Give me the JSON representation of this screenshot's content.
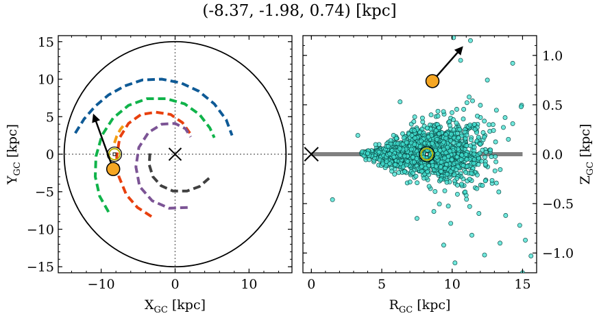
{
  "title": "(-8.37, -1.98, 0.74) [kpc]",
  "colors": {
    "spiral_1": "#0e5a96",
    "spiral_2": "#10b34a",
    "spiral_3": "#f39c12",
    "spiral_4": "#e8400e",
    "spiral_5": "#7c5495",
    "spiral_6": "#404040",
    "star_fill": "#f5a623",
    "sun_ring": "#b8b000",
    "scatter_fill": "#40e0d0",
    "plane_line": "#808080"
  },
  "chart_data": [
    {
      "type": "line",
      "name": "left-panel",
      "xlabel": "X_GC [kpc]",
      "ylabel": "Y_GC [kpc]",
      "xlim": [
        -15.8,
        15.8
      ],
      "ylim": [
        -15.8,
        15.8
      ],
      "xticks": [
        -10,
        0,
        10
      ],
      "xtick_labels": [
        "−10",
        "0",
        "10"
      ],
      "yticks": [
        -15,
        -10,
        -5,
        0,
        5,
        10,
        15
      ],
      "ytick_labels": [
        "−15",
        "−10",
        "−5",
        "0",
        "5",
        "10",
        "15"
      ],
      "grid": false,
      "boundary_circle_radius": 15,
      "galactic_center": [
        0,
        0
      ],
      "sun": [
        -8.2,
        0
      ],
      "star": [
        -8.37,
        -1.98
      ],
      "velocity_arrow": {
        "from": [
          -8.37,
          -1.98
        ],
        "to": [
          -11,
          5.2
        ]
      },
      "series": [
        {
          "values": [
            [
              -13.5,
              2.8
            ],
            [
              -12.3,
              4.7
            ],
            [
              -10.8,
              6.4
            ],
            [
              -9.0,
              7.9
            ],
            [
              -6.8,
              9.1
            ],
            [
              -4.4,
              9.9
            ],
            [
              -1.8,
              10.0
            ],
            [
              0.8,
              9.5
            ],
            [
              3.2,
              8.4
            ],
            [
              5.3,
              6.7
            ],
            [
              6.9,
              4.6
            ],
            [
              7.7,
              2.5
            ]
          ]
        },
        {
          "values": [
            [
              -9.0,
              -7.7
            ],
            [
              -10.2,
              -5.6
            ],
            [
              -10.8,
              -3.0
            ],
            [
              -10.7,
              -0.3
            ],
            [
              -9.9,
              2.5
            ],
            [
              -8.4,
              4.8
            ],
            [
              -6.3,
              6.5
            ],
            [
              -3.8,
              7.4
            ],
            [
              -1.2,
              7.4
            ],
            [
              1.3,
              6.7
            ],
            [
              3.3,
              5.3
            ],
            [
              4.7,
              3.5
            ],
            [
              5.3,
              2.2
            ]
          ]
        },
        {
          "values": [
            [
              -8.2,
              1.5
            ],
            [
              -7.9,
              2.4
            ],
            [
              -7.4,
              3.3
            ],
            [
              -7.0,
              3.8
            ]
          ]
        },
        {
          "values": [
            [
              -3.2,
              -8.3
            ],
            [
              -5.1,
              -7.1
            ],
            [
              -6.6,
              -5.4
            ],
            [
              -7.6,
              -3.0
            ],
            [
              -7.9,
              -0.4
            ],
            [
              -7.5,
              2.2
            ],
            [
              -6.3,
              4.1
            ],
            [
              -4.6,
              5.3
            ],
            [
              -2.6,
              5.6
            ],
            [
              -0.6,
              5.3
            ],
            [
              1.0,
              4.2
            ],
            [
              2.0,
              2.8
            ]
          ]
        },
        {
          "values": [
            [
              1.7,
              -7.1
            ],
            [
              -0.8,
              -7.2
            ],
            [
              -3.1,
              -6.2
            ],
            [
              -4.8,
              -4.3
            ],
            [
              -5.3,
              -1.7
            ],
            [
              -4.9,
              0.9
            ],
            [
              -3.6,
              2.9
            ],
            [
              -1.8,
              4.0
            ],
            [
              0.0,
              4.1
            ],
            [
              1.4,
              3.4
            ],
            [
              2.1,
              2.3
            ]
          ]
        },
        {
          "values": [
            [
              4.6,
              -3.2
            ],
            [
              3.3,
              -4.3
            ],
            [
              1.6,
              -4.9
            ],
            [
              -0.3,
              -4.9
            ],
            [
              -1.9,
              -4.2
            ],
            [
              -3.0,
              -3.0
            ],
            [
              -3.5,
              -1.4
            ],
            [
              -3.4,
              0.2
            ]
          ]
        }
      ]
    },
    {
      "type": "scatter",
      "name": "right-panel",
      "xlabel": "R_GC [kpc]",
      "ylabel": "Z_GC [kpc]",
      "xlim": [
        -0.6,
        16
      ],
      "ylim": [
        -1.2,
        1.2
      ],
      "xticks": [
        0,
        5,
        10,
        15
      ],
      "xtick_labels": [
        "0",
        "5",
        "10",
        "15"
      ],
      "yticks": [
        -1.0,
        -0.5,
        0.0,
        0.5,
        1.0
      ],
      "ytick_labels": [
        "−1.0",
        "−0.5",
        "0.0",
        "0.5",
        "1.0"
      ],
      "grid": false,
      "galactic_plane": {
        "x": [
          0,
          15
        ],
        "y": 0
      },
      "galactic_center": [
        0,
        0
      ],
      "sun": [
        8.2,
        0
      ],
      "star": [
        8.6,
        0.74
      ],
      "velocity_arrow": {
        "from": [
          8.6,
          0.74
        ],
        "to": [
          10.7,
          1.08
        ]
      },
      "scatter_points": 1500,
      "outliers": [
        [
          1.5,
          -0.46
        ],
        [
          3.3,
          0.19
        ],
        [
          7.5,
          -0.65
        ],
        [
          11.3,
          1.15
        ],
        [
          12.5,
          0.75
        ],
        [
          14.3,
          0.92
        ],
        [
          13.8,
          -0.62
        ],
        [
          14.8,
          -0.72
        ],
        [
          15.6,
          -1.03
        ],
        [
          15.2,
          -0.87
        ],
        [
          13.4,
          -0.9
        ],
        [
          11.4,
          -0.82
        ],
        [
          10.2,
          -1.1
        ],
        [
          9.4,
          -0.92
        ],
        [
          10.6,
          0.95
        ],
        [
          12.3,
          -1.02
        ],
        [
          14.9,
          0.48
        ],
        [
          6.3,
          0.53
        ],
        [
          8.7,
          -0.58
        ],
        [
          10.1,
          1.18
        ],
        [
          15.0,
          -1.2
        ],
        [
          12.9,
          0.3
        ],
        [
          9.9,
          -0.7
        ],
        [
          11.9,
          -0.6
        ]
      ]
    }
  ]
}
